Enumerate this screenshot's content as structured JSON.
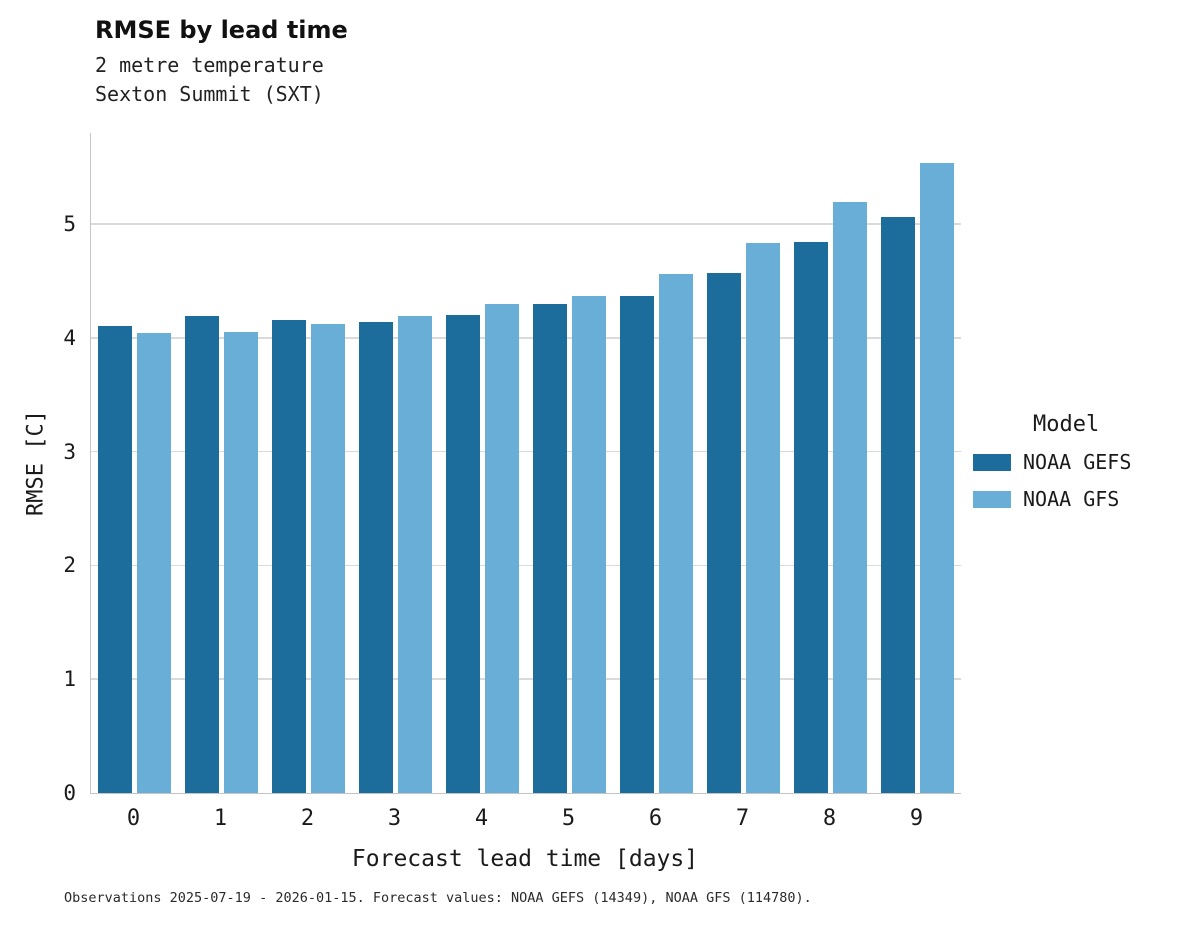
{
  "title": "RMSE by lead time",
  "subtitle_line1": "2 metre temperature",
  "subtitle_line2": "Sexton Summit (SXT)",
  "caption": "Observations 2025-07-19 - 2026-01-15. Forecast values: NOAA GEFS (14349), NOAA GFS (114780).",
  "legend": {
    "title": "Model",
    "entries": [
      {
        "label": "NOAA GEFS",
        "color": "#1d6d9c"
      },
      {
        "label": "NOAA GFS",
        "color": "#69aed6"
      }
    ]
  },
  "chart_data": {
    "type": "bar",
    "title": "RMSE by lead time",
    "subtitle": "2 metre temperature — Sexton Summit (SXT)",
    "xlabel": "Forecast lead time [days]",
    "ylabel": "RMSE [C]",
    "categories": [
      "0",
      "1",
      "2",
      "3",
      "4",
      "5",
      "6",
      "7",
      "8",
      "9"
    ],
    "series": [
      {
        "name": "NOAA GEFS",
        "color": "#1d6d9c",
        "values": [
          4.1,
          4.19,
          4.16,
          4.14,
          4.2,
          4.3,
          4.37,
          4.57,
          4.84,
          5.06
        ]
      },
      {
        "name": "NOAA GFS",
        "color": "#69aed6",
        "values": [
          4.04,
          4.05,
          4.12,
          4.19,
          4.3,
          4.37,
          4.56,
          4.83,
          5.19,
          5.54
        ]
      }
    ],
    "ylim": [
      0,
      5.8
    ],
    "yticks": [
      0,
      1,
      2,
      3,
      4,
      5
    ],
    "grid": true,
    "legend_position": "right"
  }
}
